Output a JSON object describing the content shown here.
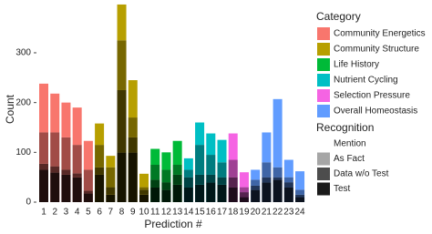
{
  "chart_data": {
    "type": "stacked_bar",
    "x_label": "Prediction #",
    "y_label": "Count",
    "categories": [
      "1",
      "2",
      "3",
      "4",
      "5",
      "6",
      "7",
      "8",
      "9",
      "10",
      "11",
      "12",
      "13",
      "14",
      "15",
      "16",
      "17",
      "18",
      "19",
      "20",
      "21",
      "22",
      "23",
      "24"
    ],
    "ylim": [
      0,
      400
    ],
    "yticks": [
      0,
      100,
      200,
      300
    ],
    "grid": false,
    "category_legend": {
      "title": "Category",
      "items": [
        {
          "name": "Community Energetics",
          "color": "#F8766D"
        },
        {
          "name": "Community Structure",
          "color": "#B79F00"
        },
        {
          "name": "Life History",
          "color": "#00BA38"
        },
        {
          "name": "Nutrient Cycling",
          "color": "#00BFC4"
        },
        {
          "name": "Selection Pressure",
          "color": "#F564E3"
        },
        {
          "name": "Overall Homeostasis",
          "color": "#619CFF"
        }
      ]
    },
    "bar_category": [
      0,
      0,
      0,
      0,
      0,
      1,
      1,
      1,
      1,
      1,
      2,
      2,
      2,
      3,
      3,
      3,
      3,
      4,
      4,
      5,
      5,
      5,
      5,
      5
    ],
    "legend_title": "Recognition",
    "series": [
      {
        "name": "Mention",
        "color": "#ffffff",
        "shade": 0,
        "values": [
          98,
          78,
          70,
          75,
          58,
          43,
          23,
          72,
          75,
          27,
          32,
          35,
          48,
          23,
          45,
          43,
          45,
          53,
          30,
          20,
          60,
          137,
          35,
          37
        ]
      },
      {
        "name": "As Fact",
        "color": "#a6a6a6",
        "shade": 0.35,
        "values": [
          63,
          68,
          65,
          57,
          42,
          45,
          40,
          100,
          40,
          5,
          30,
          25,
          20,
          15,
          60,
          40,
          30,
          35,
          10,
          12,
          30,
          20,
          10,
          10
        ]
      },
      {
        "name": "Data w/o Test",
        "color": "#4d4d4d",
        "shade": 0.65,
        "values": [
          12,
          12,
          10,
          8,
          5,
          15,
          15,
          125,
          30,
          10,
          15,
          15,
          20,
          20,
          20,
          15,
          15,
          20,
          10,
          8,
          10,
          5,
          10,
          5
        ]
      },
      {
        "name": "Test",
        "color": "#1a1a1a",
        "shade": 0.88,
        "values": [
          65,
          60,
          55,
          50,
          18,
          55,
          15,
          100,
          100,
          15,
          30,
          25,
          35,
          30,
          35,
          40,
          35,
          30,
          10,
          25,
          40,
          45,
          30,
          10
        ]
      }
    ]
  }
}
